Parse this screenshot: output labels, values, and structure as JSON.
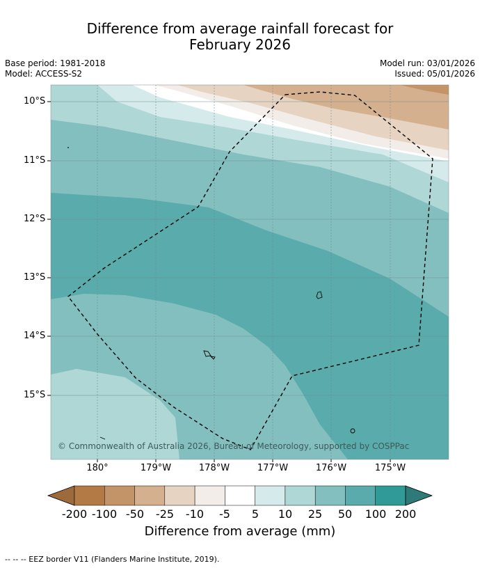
{
  "title": {
    "line1": "Difference from average rainfall forecast for",
    "line2": "February 2026"
  },
  "meta": {
    "base_period": "Base period: 1981-2018",
    "model": "Model: ACCESS-S2",
    "model_run": "Model run: 03/01/2026",
    "issued": "Issued: 05/01/2026"
  },
  "map": {
    "latitude_labels": [
      "10°S",
      "11°S",
      "12°S",
      "13°S",
      "14°S",
      "15°S"
    ],
    "longitude_labels": [
      "180°",
      "179°W",
      "178°W",
      "177°W",
      "176°W",
      "175°W"
    ],
    "copyright": "© Commonwealth of Australia 2026, Bureau of Meteorology, supported by COSPPac",
    "border_style": "dashed",
    "region_colors": {
      "brown_dark": "#b37a45",
      "brown_mid": "#d4b08e",
      "brown_light": "#e6d3c2",
      "offwhite": "#f2ede8",
      "white": "#ffffff",
      "teal_pale": "#d5eaea",
      "teal_light": "#aed7d6",
      "teal_mid": "#84bfbf",
      "teal_strong": "#5aabab"
    }
  },
  "colorbar": {
    "ticks": [
      "-200",
      "-100",
      "-50",
      "-25",
      "-10",
      "-5",
      "5",
      "10",
      "25",
      "50",
      "100",
      "200"
    ],
    "colors": [
      "#9c6a3c",
      "#b37a45",
      "#c39467",
      "#d4b08e",
      "#e6d3c2",
      "#f2ede8",
      "#ffffff",
      "#d5eaea",
      "#aed7d6",
      "#84bfbf",
      "#5aabab",
      "#309a97",
      "#2d7a78"
    ],
    "label": "Difference from average (mm)"
  },
  "footer": "--  --  -- EEZ border V11 (Flanders Marine Institute, 2019)."
}
